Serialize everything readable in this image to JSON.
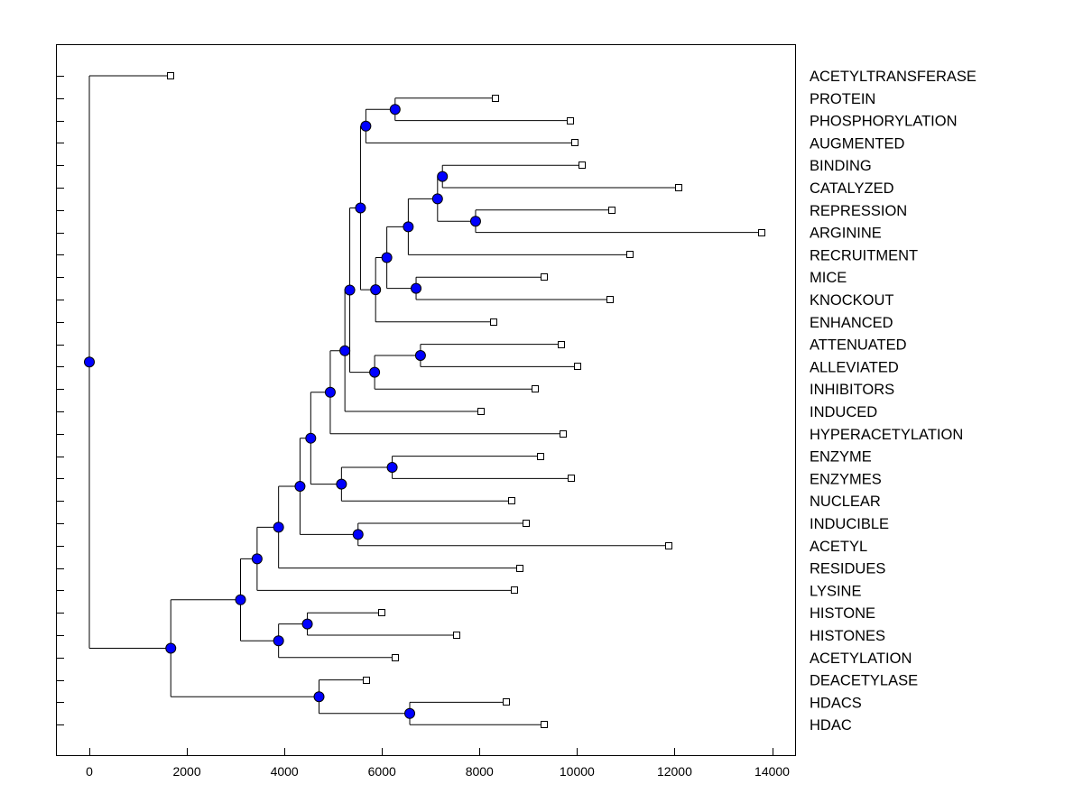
{
  "chart_data": {
    "type": "dendrogram",
    "title": "",
    "xlabel": "",
    "ylabel": "",
    "xlim": [
      -650,
      14600
    ],
    "xticks": [
      0,
      2000,
      4000,
      6000,
      8000,
      10000,
      12000,
      14000
    ],
    "xtick_labels": [
      "0",
      "2000",
      "4000",
      "6000",
      "8000",
      "10000",
      "12000",
      "14000"
    ],
    "colors": {
      "internal_node": "#0000ff",
      "line": "#000000",
      "leaf_fill": "#ffffff"
    },
    "leaves": [
      {
        "id": 1,
        "label": "ACETYLTRANSFERASE",
        "x": 1670
      },
      {
        "id": 2,
        "label": "PROTEIN",
        "x": 8330
      },
      {
        "id": 3,
        "label": "PHOSPHORYLATION",
        "x": 9860
      },
      {
        "id": 4,
        "label": "AUGMENTED",
        "x": 9960
      },
      {
        "id": 5,
        "label": "BINDING",
        "x": 10110
      },
      {
        "id": 6,
        "label": "CATALYZED",
        "x": 12090
      },
      {
        "id": 7,
        "label": "REPRESSION",
        "x": 10710
      },
      {
        "id": 8,
        "label": "ARGININE",
        "x": 13790
      },
      {
        "id": 9,
        "label": "RECRUITMENT",
        "x": 11090
      },
      {
        "id": 10,
        "label": "MICE",
        "x": 9330
      },
      {
        "id": 11,
        "label": "KNOCKOUT",
        "x": 10670
      },
      {
        "id": 12,
        "label": "ENHANCED",
        "x": 8290
      },
      {
        "id": 13,
        "label": "ATTENUATED",
        "x": 9680
      },
      {
        "id": 14,
        "label": "ALLEVIATED",
        "x": 10010
      },
      {
        "id": 15,
        "label": "INHIBITORS",
        "x": 9140
      },
      {
        "id": 16,
        "label": "INDUCED",
        "x": 8040
      },
      {
        "id": 17,
        "label": "HYPERACETYLATION",
        "x": 9720
      },
      {
        "id": 18,
        "label": "ENZYME",
        "x": 9250
      },
      {
        "id": 19,
        "label": "ENZYMES",
        "x": 9880
      },
      {
        "id": 20,
        "label": "NUCLEAR",
        "x": 8670
      },
      {
        "id": 21,
        "label": "INDUCIBLE",
        "x": 8960
      },
      {
        "id": 22,
        "label": "ACETYL",
        "x": 11890
      },
      {
        "id": 23,
        "label": "RESIDUES",
        "x": 8820
      },
      {
        "id": 24,
        "label": "LYSINE",
        "x": 8710
      },
      {
        "id": 25,
        "label": "HISTONE",
        "x": 5990
      },
      {
        "id": 26,
        "label": "HISTONES",
        "x": 7540
      },
      {
        "id": 27,
        "label": "ACETYLATION",
        "x": 6280
      },
      {
        "id": 28,
        "label": "DEACETYLASE",
        "x": 5690
      },
      {
        "id": 29,
        "label": "HDACS",
        "x": 8550
      },
      {
        "id": 30,
        "label": "HDAC",
        "x": 9320
      }
    ],
    "merges": [
      {
        "id": "n1",
        "x": 6270,
        "children": [
          2,
          3
        ]
      },
      {
        "id": "n2",
        "x": 5670,
        "children": [
          "n1",
          4
        ]
      },
      {
        "id": "n3",
        "x": 7240,
        "children": [
          5,
          6
        ]
      },
      {
        "id": "n4",
        "x": 7920,
        "children": [
          7,
          8
        ]
      },
      {
        "id": "n5",
        "x": 7140,
        "children": [
          "n3",
          "n4"
        ]
      },
      {
        "id": "n6",
        "x": 6540,
        "children": [
          "n5",
          9
        ]
      },
      {
        "id": "n7",
        "x": 6700,
        "children": [
          10,
          11
        ]
      },
      {
        "id": "n8",
        "x": 6100,
        "children": [
          "n6",
          "n7"
        ]
      },
      {
        "id": "n9",
        "x": 5870,
        "children": [
          "n8",
          12
        ]
      },
      {
        "id": "n10",
        "x": 5560,
        "children": [
          "n2",
          "n9"
        ]
      },
      {
        "id": "n11",
        "x": 6790,
        "children": [
          13,
          14
        ]
      },
      {
        "id": "n12",
        "x": 5850,
        "children": [
          "n11",
          15
        ]
      },
      {
        "id": "n13",
        "x": 5340,
        "children": [
          "n10",
          "n12"
        ]
      },
      {
        "id": "n14",
        "x": 5240,
        "children": [
          "n13",
          16
        ]
      },
      {
        "id": "n15",
        "x": 4940,
        "children": [
          "n14",
          17
        ]
      },
      {
        "id": "n16",
        "x": 6210,
        "children": [
          18,
          19
        ]
      },
      {
        "id": "n17",
        "x": 5170,
        "children": [
          "n16",
          20
        ]
      },
      {
        "id": "n18",
        "x": 4540,
        "children": [
          "n15",
          "n17"
        ]
      },
      {
        "id": "n19",
        "x": 5510,
        "children": [
          21,
          22
        ]
      },
      {
        "id": "n20",
        "x": 4320,
        "children": [
          "n18",
          "n19"
        ]
      },
      {
        "id": "n21",
        "x": 3880,
        "children": [
          "n20",
          23
        ]
      },
      {
        "id": "n22",
        "x": 3440,
        "children": [
          "n21",
          24
        ]
      },
      {
        "id": "n23",
        "x": 4470,
        "children": [
          25,
          26
        ]
      },
      {
        "id": "n24",
        "x": 3880,
        "children": [
          "n23",
          27
        ]
      },
      {
        "id": "n25",
        "x": 3100,
        "children": [
          "n22",
          "n24"
        ]
      },
      {
        "id": "n26",
        "x": 6570,
        "children": [
          29,
          30
        ]
      },
      {
        "id": "n27",
        "x": 4710,
        "children": [
          28,
          "n26"
        ]
      },
      {
        "id": "n28",
        "x": 1670,
        "children": [
          "n25",
          "n27"
        ]
      },
      {
        "id": "n29",
        "x": 0,
        "children": [
          1,
          "n28"
        ]
      }
    ]
  }
}
